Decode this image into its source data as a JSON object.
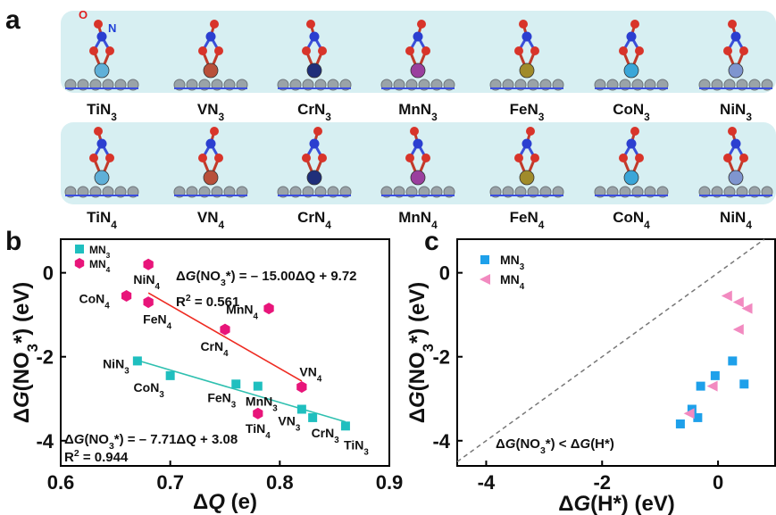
{
  "panel_a": {
    "letter": "a",
    "atom_labels": {
      "o": "O",
      "n": "N"
    },
    "row1": [
      "TiN3",
      "VN3",
      "CrN3",
      "MnN3",
      "FeN3",
      "CoN3",
      "NiN3"
    ],
    "row2": [
      "TiN4",
      "VN4",
      "CrN4",
      "MnN4",
      "FeN4",
      "CoN4",
      "NiN4"
    ],
    "metal_colors": [
      "#5fb0d8",
      "#b8503a",
      "#1f2f7a",
      "#9a3f9e",
      "#a08b2a",
      "#3aa6d8",
      "#7f95cf"
    ],
    "panel_bg": "#d7eff2"
  },
  "chart_data": [
    {
      "panel": "b",
      "type": "scatter",
      "xlabel_html": [
        "Δ",
        "Q",
        " (e)"
      ],
      "ylabel_parts": [
        "Δ",
        "G",
        "(NO",
        "3",
        "*) (eV)"
      ],
      "xlim": [
        0.6,
        0.9
      ],
      "ylim": [
        -4.6,
        0.8
      ],
      "xticks": [
        "0.6",
        "0.7",
        "0.8",
        "0.9"
      ],
      "xtick_values": [
        0.6,
        0.7,
        0.8,
        0.9
      ],
      "yticks": [
        "-4",
        "-2",
        "0"
      ],
      "ytick_values": [
        -4,
        -2,
        0
      ],
      "legend": [
        "MN3",
        "MN4"
      ],
      "series": [
        {
          "name": "MN3",
          "color": "#1fbfbf",
          "marker": "square",
          "points": [
            {
              "label": "TiN3",
              "x": 0.86,
              "y": -3.65
            },
            {
              "label": "VN3",
              "x": 0.82,
              "y": -3.25
            },
            {
              "label": "CrN3",
              "x": 0.83,
              "y": -3.45
            },
            {
              "label": "MnN3",
              "x": 0.78,
              "y": -2.7
            },
            {
              "label": "FeN3",
              "x": 0.76,
              "y": -2.65
            },
            {
              "label": "CoN3",
              "x": 0.7,
              "y": -2.45
            },
            {
              "label": "NiN3",
              "x": 0.67,
              "y": -2.1
            }
          ],
          "fit": {
            "x": [
              0.67,
              0.86
            ],
            "color": "#2fc0b0",
            "slope": -7.71,
            "intercept": 3.08
          }
        },
        {
          "name": "MN4",
          "color": "#e8157a",
          "marker": "hexagon",
          "points": [
            {
              "label": "TiN4",
              "x": 0.78,
              "y": -3.35
            },
            {
              "label": "VN4",
              "x": 0.82,
              "y": -2.72
            },
            {
              "label": "CrN4",
              "x": 0.75,
              "y": -1.35
            },
            {
              "label": "MnN4",
              "x": 0.79,
              "y": -0.85
            },
            {
              "label": "FeN4",
              "x": 0.68,
              "y": -0.7
            },
            {
              "label": "CoN4",
              "x": 0.66,
              "y": -0.55
            },
            {
              "label": "NiN4",
              "x": 0.68,
              "y": 0.2
            }
          ],
          "fit": {
            "x": [
              0.68,
              0.82
            ],
            "color": "#ee2b22",
            "slope": -15.0,
            "intercept": 9.72
          }
        }
      ],
      "annotations": {
        "eq4": [
          "Δ",
          "G",
          "(NO",
          "3",
          "*) = – 15.00ΔQ + 9.72"
        ],
        "r2_4": "0.561",
        "eq3": [
          "Δ",
          "G",
          "(NO",
          "3",
          "*) = – 7.71ΔQ + 3.08"
        ],
        "r2_3": "0.944",
        "r2_prefix": "R",
        "r2_sup": "2",
        "r2_eq": " = "
      }
    },
    {
      "panel": "c",
      "type": "scatter",
      "xlabel_parts": [
        "Δ",
        "G",
        "(H*) (eV)"
      ],
      "ylabel_parts": [
        "Δ",
        "G",
        "(NO",
        "3",
        "*) (eV)"
      ],
      "xlim": [
        -4.5,
        1.0
      ],
      "ylim": [
        -4.6,
        0.8
      ],
      "xticks": [
        "-4",
        "-2",
        "0"
      ],
      "xtick_values": [
        -4,
        -2,
        0
      ],
      "yticks": [
        "-4",
        "-2",
        "0"
      ],
      "ytick_values": [
        -4,
        -2,
        0
      ],
      "legend": [
        "MN3",
        "MN4"
      ],
      "series": [
        {
          "name": "MN3",
          "color": "#1ea0ea",
          "marker": "square",
          "points": [
            {
              "x": -0.65,
              "y": -3.6
            },
            {
              "x": -0.45,
              "y": -3.25
            },
            {
              "x": -0.35,
              "y": -3.45
            },
            {
              "x": -0.3,
              "y": -2.7
            },
            {
              "x": -0.05,
              "y": -2.45
            },
            {
              "x": 0.25,
              "y": -2.1
            },
            {
              "x": 0.45,
              "y": -2.65
            }
          ]
        },
        {
          "name": "MN4",
          "color": "#f28ac0",
          "marker": "triangle-left",
          "points": [
            {
              "x": 0.15,
              "y": -0.55
            },
            {
              "x": 0.35,
              "y": -0.7
            },
            {
              "x": 0.5,
              "y": -0.85
            },
            {
              "x": 0.35,
              "y": -1.35
            },
            {
              "x": -0.1,
              "y": -2.7
            },
            {
              "x": -0.5,
              "y": -3.35
            }
          ]
        }
      ],
      "diagonal": {
        "color": "#777777",
        "style": "dashed"
      },
      "annotation": [
        "Δ",
        "G",
        "(NO",
        "3",
        "*) < Δ",
        "G",
        "(H*)"
      ]
    }
  ],
  "panel_b_letter": "b",
  "panel_c_letter": "c"
}
